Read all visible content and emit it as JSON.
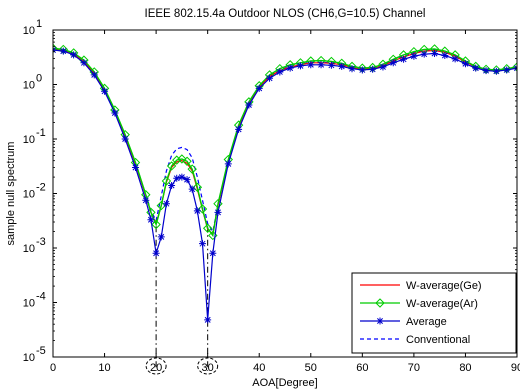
{
  "chart_data": {
    "type": "line",
    "title": "IEEE 802.15.4a Outdoor NLOS (CH6,G=10.5) Channel",
    "xlabel": "AOA[Degree]",
    "ylabel": "sample null spectrum",
    "xlim": [
      0,
      90
    ],
    "ylim": [
      1e-05,
      10
    ],
    "yscale": "log",
    "grid": false,
    "legend_position": "bottom-right",
    "x_ticks": [
      0,
      10,
      20,
      30,
      40,
      50,
      60,
      70,
      80,
      90
    ],
    "y_ticks": [
      {
        "value": 1e-05,
        "base": "10",
        "exp": "-5"
      },
      {
        "value": 0.0001,
        "base": "10",
        "exp": "-4"
      },
      {
        "value": 0.001,
        "base": "10",
        "exp": "-3"
      },
      {
        "value": 0.01,
        "base": "10",
        "exp": "-2"
      },
      {
        "value": 0.1,
        "base": "10",
        "exp": "-1"
      },
      {
        "value": 1,
        "base": "10",
        "exp": "0"
      },
      {
        "value": 10,
        "base": "10",
        "exp": "1"
      }
    ],
    "annotations": [
      {
        "type": "vline",
        "x": 20,
        "style": "dash-dot",
        "circled": true
      },
      {
        "type": "vline",
        "x": 30,
        "style": "dash-dot",
        "circled": true
      }
    ],
    "series": [
      {
        "name": "W-average(Ge)",
        "color": "#ff0000",
        "marker": "none",
        "style": "solid",
        "x": [
          0,
          2,
          4,
          6,
          8,
          10,
          12,
          14,
          16,
          18,
          19,
          20,
          21,
          22,
          23,
          24,
          25,
          26,
          27,
          28,
          29,
          30,
          31,
          32,
          34,
          36,
          38,
          40,
          42,
          44,
          46,
          48,
          50,
          52,
          54,
          56,
          58,
          60,
          62,
          64,
          66,
          68,
          70,
          72,
          74,
          76,
          78,
          80,
          82,
          84,
          86,
          88,
          90
        ],
        "values": [
          4.4,
          4.2,
          3.6,
          2.6,
          1.6,
          0.8,
          0.32,
          0.11,
          0.035,
          0.009,
          0.0045,
          0.0028,
          0.006,
          0.016,
          0.03,
          0.038,
          0.04,
          0.036,
          0.026,
          0.012,
          0.005,
          0.0022,
          0.0018,
          0.006,
          0.04,
          0.17,
          0.45,
          0.9,
          1.4,
          1.8,
          2.1,
          2.3,
          2.5,
          2.5,
          2.45,
          2.3,
          2.05,
          1.9,
          1.95,
          2.2,
          2.7,
          3.2,
          3.7,
          4.1,
          4.2,
          3.9,
          3.3,
          2.6,
          2.1,
          1.85,
          1.8,
          1.9,
          2.05
        ]
      },
      {
        "name": "W-average(Ar)",
        "color": "#00cc00",
        "marker": "diamond",
        "style": "solid",
        "x": [
          0,
          2,
          4,
          6,
          8,
          10,
          12,
          14,
          16,
          18,
          19,
          20,
          21,
          22,
          23,
          24,
          25,
          26,
          27,
          28,
          29,
          30,
          31,
          32,
          34,
          36,
          38,
          40,
          42,
          44,
          46,
          48,
          50,
          52,
          54,
          56,
          58,
          60,
          62,
          64,
          66,
          68,
          70,
          72,
          74,
          76,
          78,
          80,
          82,
          84,
          86,
          88,
          90
        ],
        "values": [
          4.6,
          4.4,
          3.8,
          2.8,
          1.7,
          0.85,
          0.34,
          0.12,
          0.037,
          0.0095,
          0.0045,
          0.0027,
          0.006,
          0.017,
          0.032,
          0.041,
          0.043,
          0.039,
          0.028,
          0.013,
          0.0052,
          0.0023,
          0.0017,
          0.0065,
          0.042,
          0.18,
          0.48,
          0.95,
          1.5,
          1.95,
          2.3,
          2.5,
          2.7,
          2.75,
          2.65,
          2.45,
          2.15,
          2.0,
          2.05,
          2.35,
          2.9,
          3.5,
          4.0,
          4.4,
          4.5,
          4.1,
          3.5,
          2.7,
          2.15,
          1.9,
          1.85,
          1.95,
          2.1
        ]
      },
      {
        "name": "Average",
        "color": "#0000cc",
        "marker": "star",
        "style": "solid",
        "x": [
          0,
          2,
          4,
          6,
          8,
          10,
          12,
          14,
          16,
          18,
          19,
          20,
          21,
          22,
          23,
          24,
          25,
          26,
          27,
          28,
          29,
          30,
          31,
          32,
          34,
          36,
          38,
          40,
          42,
          44,
          46,
          48,
          50,
          52,
          54,
          56,
          58,
          60,
          62,
          64,
          66,
          68,
          70,
          72,
          74,
          76,
          78,
          80,
          82,
          84,
          86,
          88,
          90
        ],
        "values": [
          4.3,
          4.1,
          3.5,
          2.5,
          1.5,
          0.75,
          0.3,
          0.1,
          0.03,
          0.0075,
          0.0033,
          0.0008,
          0.0016,
          0.0065,
          0.014,
          0.019,
          0.02,
          0.018,
          0.012,
          0.0048,
          0.0012,
          4.8e-05,
          0.0008,
          0.0045,
          0.035,
          0.15,
          0.42,
          0.85,
          1.3,
          1.7,
          2.0,
          2.2,
          2.3,
          2.3,
          2.25,
          2.15,
          1.95,
          1.85,
          1.9,
          2.1,
          2.5,
          2.9,
          3.3,
          3.6,
          3.7,
          3.4,
          2.95,
          2.4,
          2.0,
          1.8,
          1.75,
          1.85,
          2.0
        ]
      },
      {
        "name": "Conventional",
        "color": "#0000ff",
        "marker": "none",
        "style": "dashed",
        "x": [
          0,
          2,
          4,
          6,
          8,
          10,
          12,
          14,
          16,
          18,
          19,
          20,
          21,
          22,
          23,
          24,
          25,
          26,
          27,
          28,
          29,
          30,
          31,
          32,
          34,
          36,
          38,
          40,
          42,
          44,
          46,
          48,
          50,
          52,
          54,
          56,
          58,
          60,
          62,
          64,
          66,
          68,
          70,
          72,
          74,
          76,
          78,
          80,
          82,
          84,
          86,
          88,
          90
        ],
        "values": [
          4.5,
          4.3,
          3.7,
          2.7,
          1.65,
          0.82,
          0.33,
          0.115,
          0.036,
          0.0095,
          0.0048,
          0.0032,
          0.009,
          0.026,
          0.05,
          0.066,
          0.07,
          0.064,
          0.045,
          0.02,
          0.0075,
          0.0028,
          0.002,
          0.0062,
          0.04,
          0.17,
          0.46,
          0.92,
          1.45,
          1.85,
          2.15,
          2.35,
          2.55,
          2.55,
          2.5,
          2.35,
          2.1,
          1.95,
          2.0,
          2.25,
          2.75,
          3.3,
          3.8,
          4.2,
          4.3,
          4.0,
          3.4,
          2.65,
          2.12,
          1.88,
          1.82,
          1.92,
          2.07
        ]
      }
    ]
  }
}
